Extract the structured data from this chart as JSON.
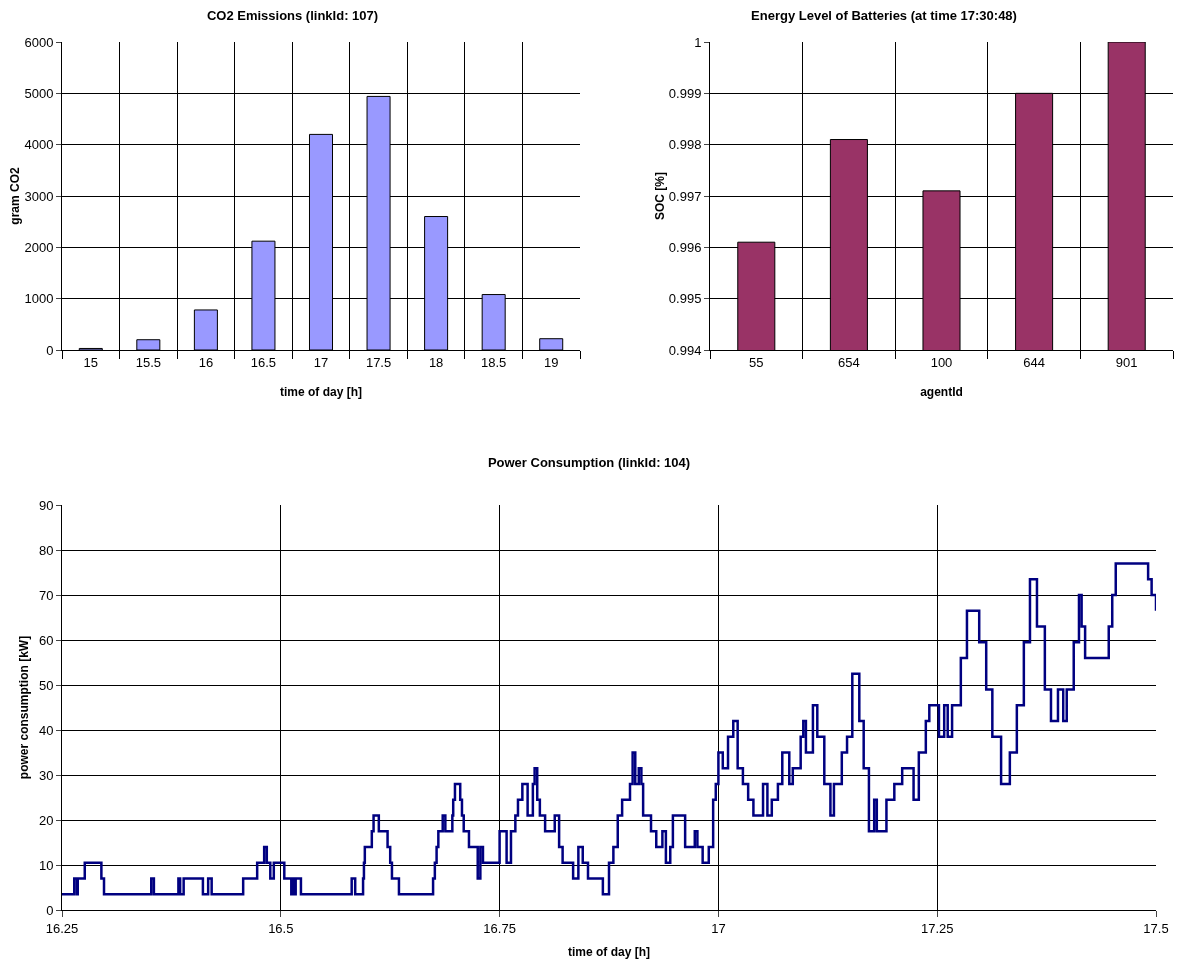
{
  "chart_data": [
    {
      "type": "bar",
      "title": "CO2 Emissions (linkId: 107)",
      "xlabel": "time of day [h]",
      "ylabel": "gram CO2",
      "categories": [
        "15",
        "15.5",
        "16",
        "16.5",
        "17",
        "17.5",
        "18",
        "18.5",
        "19"
      ],
      "values": [
        30,
        200,
        780,
        2120,
        4200,
        4940,
        2600,
        1080,
        220
      ],
      "color": "#9999ff",
      "ylim": [
        0,
        6000
      ],
      "yticks": [
        0,
        1000,
        2000,
        3000,
        4000,
        5000,
        6000
      ],
      "grid": true
    },
    {
      "type": "bar",
      "title": "Energy Level of Batteries (at time 17:30:48)",
      "xlabel": "agentId",
      "ylabel": "SOC [%]",
      "categories": [
        "55",
        "654",
        "100",
        "644",
        "901"
      ],
      "values": [
        0.9961,
        0.9981,
        0.9971,
        0.999,
        1
      ],
      "color": "#993366",
      "ylim": [
        0.994,
        1
      ],
      "yticks": [
        0.994,
        0.995,
        0.996,
        0.997,
        0.998,
        0.999,
        1
      ],
      "grid": true
    },
    {
      "type": "step",
      "title": "Power Consumption (linkId: 104)",
      "xlabel": "time of day [h]",
      "ylabel": "power consumption [kW]",
      "color": "#000080",
      "xlim": [
        16.25,
        17.5
      ],
      "xticks": [
        16.25,
        16.5,
        16.75,
        17,
        17.25,
        17.5
      ],
      "ylim": [
        0,
        90
      ],
      "yticks": [
        0,
        10,
        20,
        30,
        40,
        50,
        60,
        70,
        80,
        90
      ],
      "grid": true,
      "x": [
        16.25,
        16.264,
        16.267,
        16.268,
        16.276,
        16.295,
        16.298,
        16.352,
        16.355,
        16.383,
        16.385,
        16.389,
        16.411,
        16.417,
        16.421,
        16.457,
        16.473,
        16.481,
        16.484,
        16.488,
        16.492,
        16.504,
        16.512,
        16.513,
        16.515,
        16.517,
        16.523,
        16.581,
        16.585,
        16.594,
        16.595,
        16.596,
        16.604,
        16.606,
        16.612,
        16.622,
        16.625,
        16.627,
        16.635,
        16.674,
        16.676,
        16.678,
        16.68,
        16.685,
        16.688,
        16.696,
        16.697,
        16.699,
        16.705,
        16.707,
        16.709,
        16.715,
        16.725,
        16.728,
        16.731,
        16.75,
        16.758,
        16.763,
        16.768,
        16.771,
        16.776,
        16.782,
        16.788,
        16.79,
        16.793,
        16.796,
        16.802,
        16.813,
        16.818,
        16.822,
        16.834,
        16.84,
        16.845,
        16.851,
        16.868,
        16.875,
        16.88,
        16.885,
        16.89,
        16.899,
        16.902,
        16.905,
        16.909,
        16.912,
        16.914,
        16.923,
        16.929,
        16.936,
        16.94,
        16.945,
        16.948,
        16.962,
        16.973,
        16.976,
        16.982,
        16.989,
        16.994,
        16.997,
        17.0,
        17.005,
        17.011,
        17.017,
        17.022,
        17.028,
        17.034,
        17.04,
        17.051,
        17.056,
        17.061,
        17.068,
        17.073,
        17.081,
        17.085,
        17.094,
        17.097,
        17.1,
        17.108,
        17.113,
        17.121,
        17.128,
        17.132,
        17.141,
        17.147,
        17.153,
        17.161,
        17.166,
        17.172,
        17.178,
        17.181,
        17.192,
        17.201,
        17.21,
        17.223,
        17.229,
        17.237,
        17.241,
        17.252,
        17.258,
        17.262,
        17.267,
        17.277,
        17.284,
        17.298,
        17.306,
        17.313,
        17.323,
        17.333,
        17.341,
        17.349,
        17.356,
        17.364,
        17.373,
        17.38,
        17.388,
        17.394,
        17.398,
        17.406,
        17.412,
        17.415,
        17.419,
        17.446,
        17.45,
        17.454,
        17.491,
        17.495,
        17.5
      ],
      "values": [
        3.5,
        7,
        3.5,
        7,
        10.5,
        7,
        3.5,
        7,
        3.5,
        7,
        3.5,
        7,
        3.5,
        7,
        3.5,
        7,
        10.5,
        14,
        10.5,
        7,
        10.5,
        7,
        3.5,
        7,
        3.5,
        7,
        3.5,
        7,
        3.5,
        7,
        10.5,
        14,
        17.5,
        21,
        17.5,
        14,
        10.5,
        7,
        3.5,
        7,
        10.5,
        14,
        17.5,
        21,
        17.5,
        21,
        24.5,
        28,
        24.5,
        21,
        17.5,
        14,
        7,
        14,
        10.5,
        17.5,
        10.5,
        17.5,
        21,
        24.5,
        28,
        21,
        28,
        31.5,
        24.5,
        21,
        17.5,
        21,
        14,
        10.5,
        7,
        14,
        10.5,
        7,
        3.5,
        10.5,
        14,
        21,
        24.5,
        28,
        35,
        28,
        31.5,
        28,
        21,
        17.5,
        14,
        17.5,
        10.5,
        14,
        21,
        14,
        17.5,
        14,
        10.5,
        14,
        24.5,
        28,
        35,
        31.5,
        38.5,
        42,
        31.5,
        28,
        24.5,
        21,
        28,
        21,
        24.5,
        28,
        35,
        28,
        31.5,
        38.5,
        42,
        35,
        45.5,
        38.5,
        28,
        21,
        28,
        35,
        38.5,
        52.5,
        42,
        31.5,
        17.5,
        24.5,
        17.5,
        24.5,
        28,
        31.5,
        24.5,
        35,
        42,
        45.5,
        38.5,
        45.5,
        38.5,
        45.5,
        56,
        66.5,
        59.5,
        49,
        38.5,
        28,
        35,
        45.5,
        59.5,
        73.5,
        63,
        49,
        42,
        49,
        42,
        49,
        59.5,
        70,
        63,
        56,
        63,
        70,
        77,
        73.5,
        70,
        66.5
      ]
    }
  ]
}
